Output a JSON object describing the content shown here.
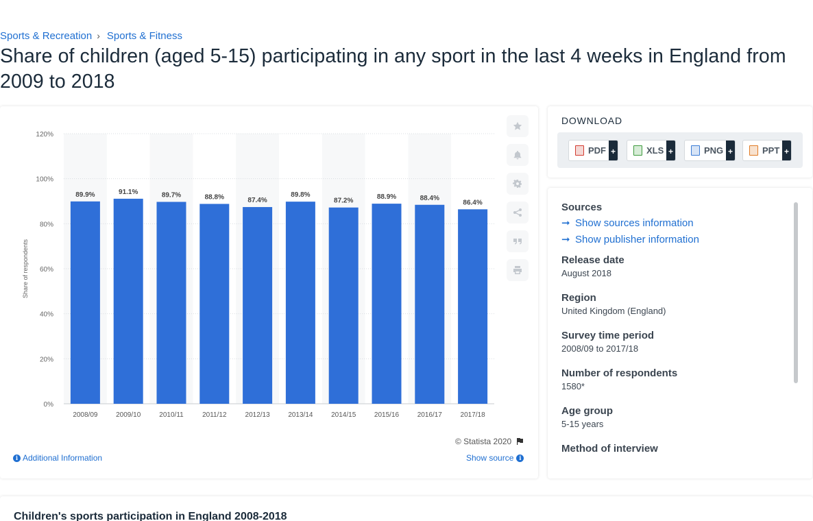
{
  "breadcrumb": [
    "Sports & Recreation",
    "Sports & Fitness"
  ],
  "title": "Share of children (aged 5-15) participating in any sport in the last 4 weeks in England from 2009 to 2018",
  "chart_data": {
    "type": "bar",
    "categories": [
      "2008/09",
      "2009/10",
      "2010/11",
      "2011/12",
      "2012/13",
      "2013/14",
      "2014/15",
      "2015/16",
      "2016/17",
      "2017/18"
    ],
    "values": [
      89.9,
      91.1,
      89.7,
      88.8,
      87.4,
      89.8,
      87.2,
      88.9,
      88.4,
      86.4
    ],
    "data_labels": [
      "89.9%",
      "91.1%",
      "89.7%",
      "88.8%",
      "87.4%",
      "89.8%",
      "87.2%",
      "88.9%",
      "88.4%",
      "86.4%"
    ],
    "yticks": [
      0,
      20,
      40,
      60,
      80,
      100,
      120
    ],
    "ytick_labels": [
      "0%",
      "20%",
      "40%",
      "60%",
      "80%",
      "100%",
      "120%"
    ],
    "ylim": [
      0,
      120
    ],
    "ylabel": "Share of respondents",
    "xlabel": "",
    "bar_color": "#2f6fd8",
    "grid": true
  },
  "chart_tools": [
    "star-icon",
    "bell-icon",
    "gear-icon",
    "share-icon",
    "quote-icon",
    "print-icon"
  ],
  "copyright": "© Statista 2020",
  "additional_info": "Additional Information",
  "show_source": "Show source",
  "download": {
    "title": "DOWNLOAD",
    "buttons": [
      {
        "label": "PDF",
        "color": "#d33a2f"
      },
      {
        "label": "XLS",
        "color": "#3d9a3d"
      },
      {
        "label": "PNG",
        "color": "#3a7bd5"
      },
      {
        "label": "PPT",
        "color": "#e07a24"
      }
    ],
    "plus": "+"
  },
  "details": {
    "sources_heading": "Sources",
    "show_sources": "Show sources information",
    "show_publisher": "Show publisher information",
    "sections": [
      {
        "heading": "Release date",
        "value": "August 2018"
      },
      {
        "heading": "Region",
        "value": "United Kingdom (England)"
      },
      {
        "heading": "Survey time period",
        "value": "2008/09 to 2017/18"
      },
      {
        "heading": "Number of respondents",
        "value": "1580*"
      },
      {
        "heading": "Age group",
        "value": "5-15 years"
      },
      {
        "heading": "Method of interview",
        "value": ""
      }
    ]
  },
  "bottom_title": "Children's sports participation in England 2008-2018"
}
